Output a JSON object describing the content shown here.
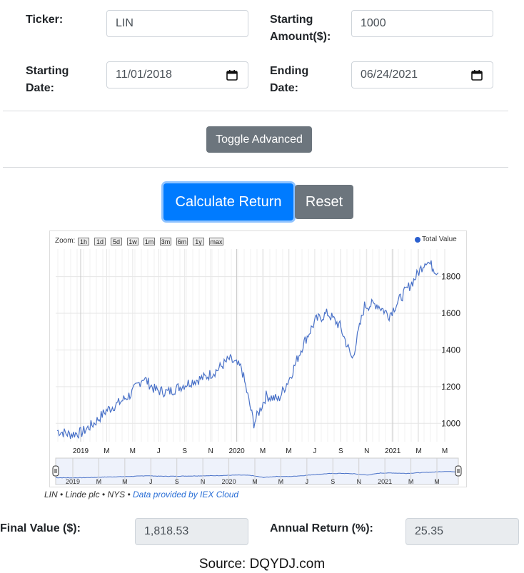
{
  "form": {
    "ticker_label": "Ticker:",
    "ticker_value": "LIN",
    "starting_amount_label_1": "Starting",
    "starting_amount_label_2": "Amount($):",
    "starting_amount_value": "1000",
    "starting_date_label_1": "Starting",
    "starting_date_label_2": "Date:",
    "starting_date_value": "11/01/2018",
    "ending_date_label_1": "Ending",
    "ending_date_label_2": "Date:",
    "ending_date_value": "06/24/2021"
  },
  "buttons": {
    "toggle_advanced": "Toggle Advanced",
    "calculate": "Calculate Return",
    "reset": "Reset"
  },
  "chart": {
    "zoom_label": "Zoom:",
    "zoom_options": [
      "1h",
      "1d",
      "5d",
      "1w",
      "1m",
      "3m",
      "6m",
      "1y",
      "max"
    ],
    "legend": "Total Value",
    "credit_prefix": "LIN • Linde plc • NYS • ",
    "credit_link": "Data provided by IEX Cloud"
  },
  "chart_data": {
    "type": "line",
    "series": [
      {
        "name": "Total Value",
        "x": [
          "2018-11",
          "2018-12",
          "2019-01",
          "2019-02",
          "2019-03",
          "2019-04",
          "2019-05",
          "2019-06",
          "2019-07",
          "2019-08",
          "2019-09",
          "2019-10",
          "2019-11",
          "2019-12",
          "2020-01",
          "2020-02",
          "2020-03",
          "2020-04",
          "2020-05",
          "2020-06",
          "2020-07",
          "2020-08",
          "2020-09",
          "2020-10",
          "2020-11",
          "2020-12",
          "2021-01",
          "2021-02",
          "2021-03",
          "2021-04",
          "2021-05",
          "2021-06"
        ],
        "values": [
          960,
          940,
          950,
          1000,
          1070,
          1110,
          1160,
          1250,
          1180,
          1170,
          1200,
          1230,
          1250,
          1290,
          1350,
          1300,
          1000,
          1150,
          1130,
          1260,
          1430,
          1560,
          1600,
          1530,
          1350,
          1640,
          1650,
          1590,
          1690,
          1780,
          1890,
          1820
        ]
      }
    ],
    "x_tick_labels": [
      "2019",
      "M",
      "M",
      "J",
      "S",
      "N",
      "2020",
      "M",
      "M",
      "J",
      "S",
      "N",
      "2021",
      "M",
      "M"
    ],
    "navigator_tick_labels": [
      "2019",
      "M",
      "M",
      "J",
      "S",
      "N",
      "2020",
      "M",
      "M",
      "J",
      "S",
      "N",
      "2021",
      "M",
      "M"
    ],
    "y_ticks": [
      1000,
      1200,
      1400,
      1600,
      1800
    ],
    "ylim": [
      900,
      1950
    ],
    "color": "#4a72c8",
    "grid": true,
    "legend_position": "top-right"
  },
  "results": {
    "final_value_label": "Final Value ($):",
    "final_value": "1,818.53",
    "annual_return_label": "Annual Return (%):",
    "annual_return": "25.35"
  },
  "footer": {
    "source": "Source: DQYDJ.com"
  },
  "colors": {
    "primary": "#007bff",
    "secondary": "#6c757d",
    "series": "#4a72c8"
  }
}
